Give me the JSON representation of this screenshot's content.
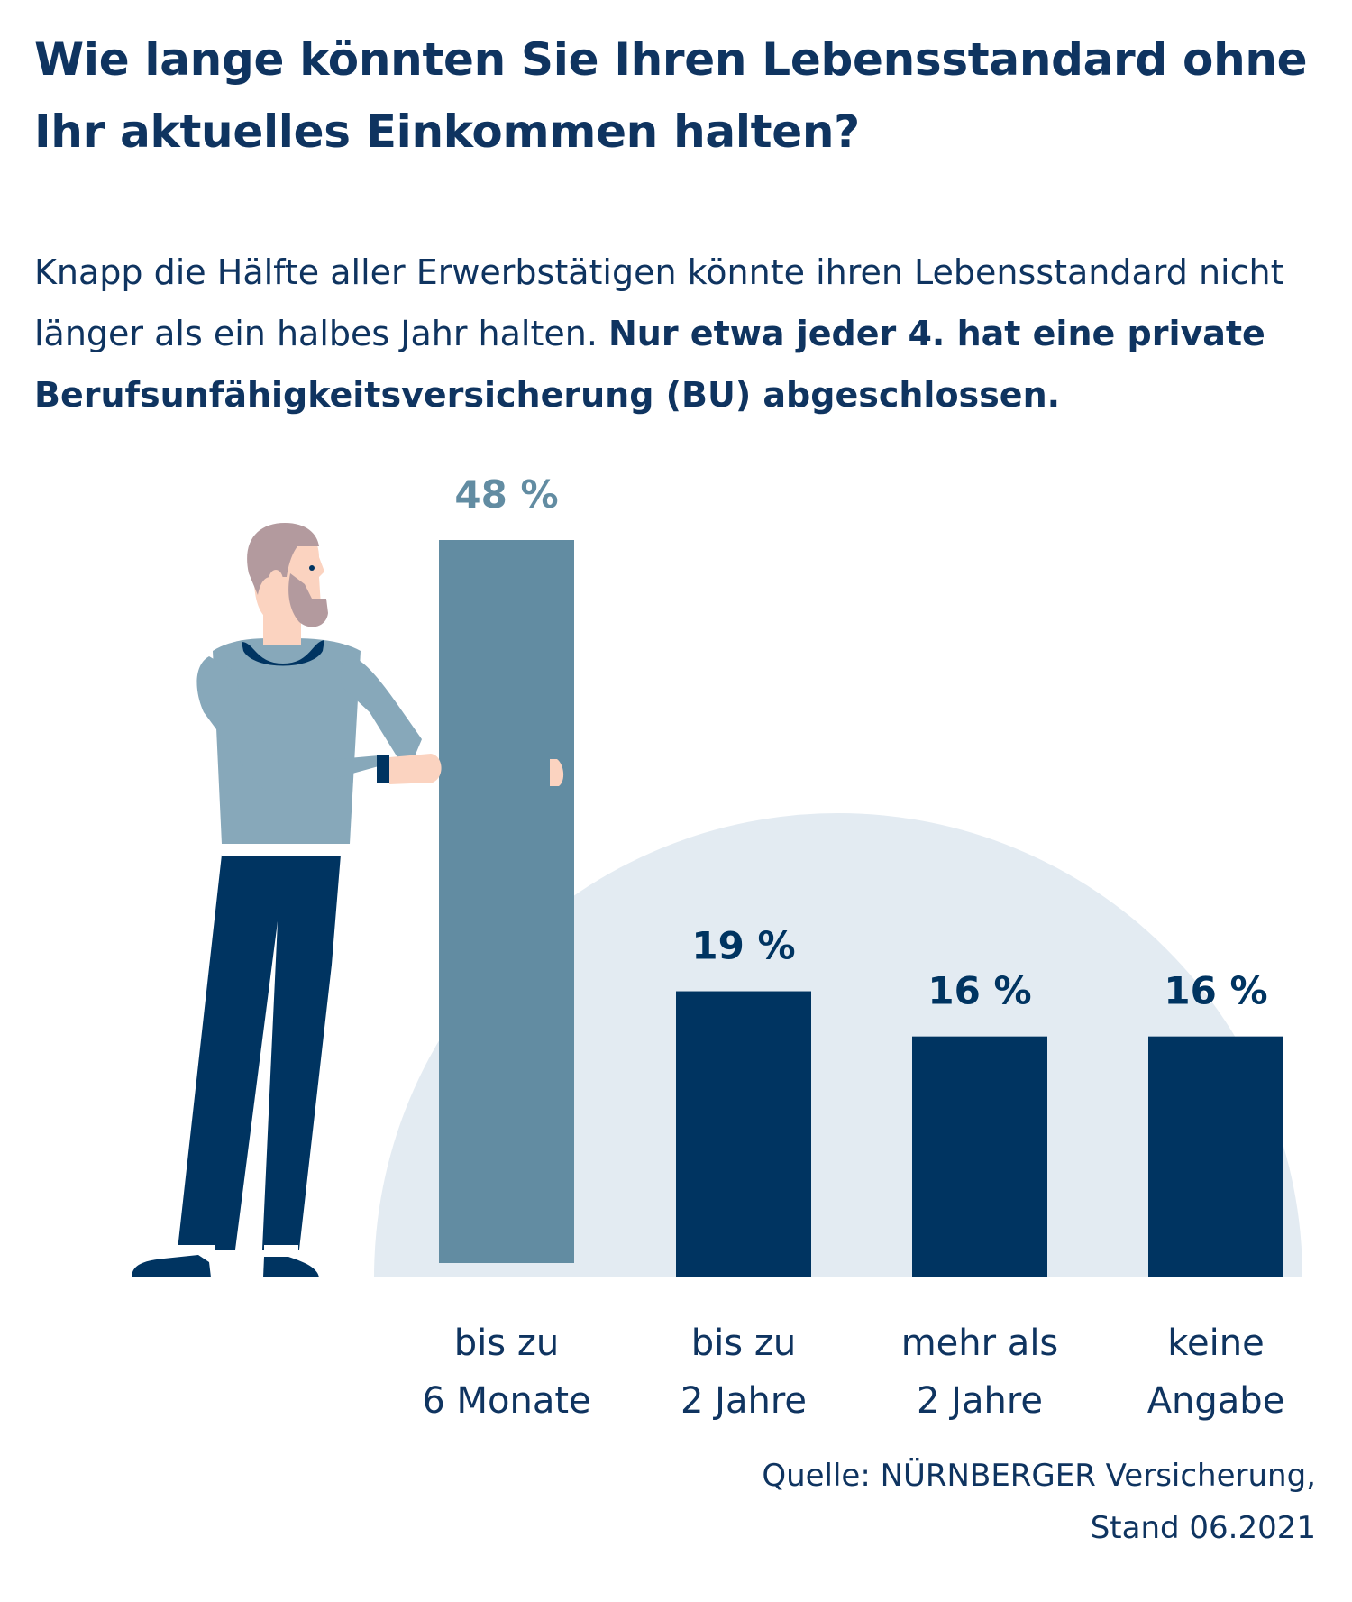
{
  "title": "Wie lange könnten Sie Ihren Lebensstandard ohne Ihr aktuelles Einkommen halten?",
  "subtitle": {
    "normal": "Knapp die Hälfte aller Erwerbstätigen könnte ihren Lebensstandard nicht länger als ein halbes Jahr halten. ",
    "bold": "Nur etwa jeder 4. hat eine private Berufsunfähigkeitsversicherung (BU) abgeschlossen."
  },
  "source": {
    "line1": "Quelle: NÜRNBERGER Versicherung,",
    "line2": "Stand 06.2021"
  },
  "colors": {
    "highlight_bar": "#628ca2",
    "bar": "#003461",
    "background_circle": "#e3ebf2",
    "text": "#0f3460"
  },
  "chart_data": {
    "type": "bar",
    "categories": [
      [
        "bis zu",
        "6 Monate"
      ],
      [
        "bis zu",
        "2 Jahre"
      ],
      [
        "mehr als",
        "2 Jahre"
      ],
      [
        "keine",
        "Angabe"
      ]
    ],
    "values": [
      48,
      19,
      16,
      16
    ],
    "value_labels": [
      "48 %",
      "19 %",
      "16 %",
      "16 %"
    ],
    "unit": "%",
    "highlight_index": 0,
    "ylim": [
      0,
      48
    ],
    "grid": false,
    "legend": "none"
  }
}
